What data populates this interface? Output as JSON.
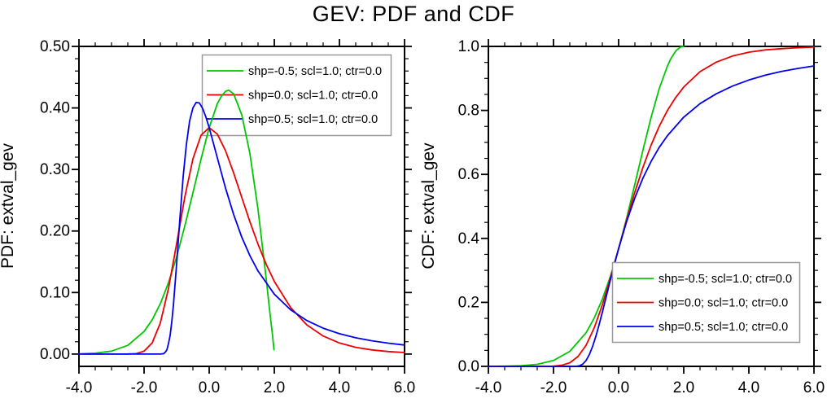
{
  "figure": {
    "title": "GEV: PDF and CDF"
  },
  "chart_data": [
    {
      "type": "line",
      "title": "",
      "xlabel": "",
      "ylabel": "PDF: extval_gev",
      "xlim": [
        -4,
        6
      ],
      "ylim": [
        -0.02,
        0.5
      ],
      "grid": false,
      "legend_position": "upper-right-inside",
      "legend_opaque": false,
      "xtick_values": [
        -4,
        -2,
        0,
        2,
        4,
        6
      ],
      "xtick_labels": [
        "-4.0",
        "-2.0",
        "0.0",
        "2.0",
        "4.0",
        "6.0"
      ],
      "xminor_step": 0.5,
      "ytick_values": [
        0,
        0.1,
        0.2,
        0.3,
        0.4,
        0.5
      ],
      "ytick_labels": [
        "0.00",
        "0.10",
        "0.20",
        "0.30",
        "0.40",
        "0.50"
      ],
      "yminor_step": 0.02,
      "series": [
        {
          "name": "shp=-0.5; scl=1.0; ctr=0.0",
          "color": "#00C800",
          "points": [
            [
              -4,
              0.0004
            ],
            [
              -3.5,
              0.0014
            ],
            [
              -3,
              0.0048
            ],
            [
              -2.5,
              0.0142
            ],
            [
              -2,
              0.0366
            ],
            [
              -1.75,
              0.0557
            ],
            [
              -1.5,
              0.082
            ],
            [
              -1.25,
              0.116
            ],
            [
              -1,
              0.158
            ],
            [
              -0.75,
              0.208
            ],
            [
              -0.5,
              0.262
            ],
            [
              -0.25,
              0.317
            ],
            [
              0,
              0.368
            ],
            [
              0.25,
              0.407
            ],
            [
              0.375,
              0.419
            ],
            [
              0.5,
              0.427
            ],
            [
              0.6,
              0.429
            ],
            [
              0.75,
              0.423
            ],
            [
              1,
              0.389
            ],
            [
              1.25,
              0.326
            ],
            [
              1.5,
              0.235
            ],
            [
              1.75,
              0.123
            ],
            [
              1.85,
              0.074
            ],
            [
              1.95,
              0.028
            ],
            [
              1.99,
              0.007
            ]
          ]
        },
        {
          "name": "shp=0.0; scl=1.0; ctr=0.0",
          "color": "#EE0000",
          "points": [
            [
              -4,
              0
            ],
            [
              -3,
              0
            ],
            [
              -2.5,
              0.0001
            ],
            [
              -2.25,
              0.0007
            ],
            [
              -2,
              0.0046
            ],
            [
              -1.75,
              0.0183
            ],
            [
              -1.5,
              0.0507
            ],
            [
              -1.25,
              0.1065
            ],
            [
              -1,
              0.1794
            ],
            [
              -0.75,
              0.2548
            ],
            [
              -0.5,
              0.3171
            ],
            [
              -0.25,
              0.3556
            ],
            [
              0,
              0.3679
            ],
            [
              0.25,
              0.3575
            ],
            [
              0.5,
              0.3307
            ],
            [
              0.75,
              0.2945
            ],
            [
              1,
              0.2547
            ],
            [
              1.25,
              0.2151
            ],
            [
              1.5,
              0.1785
            ],
            [
              1.75,
              0.1461
            ],
            [
              2,
              0.1182
            ],
            [
              2.5,
              0.0756
            ],
            [
              3,
              0.0474
            ],
            [
              3.5,
              0.0293
            ],
            [
              4,
              0.018
            ],
            [
              4.5,
              0.011
            ],
            [
              5,
              0.0067
            ],
            [
              5.5,
              0.0041
            ],
            [
              6,
              0.0025
            ]
          ]
        },
        {
          "name": "shp=0.5; scl=1.0; ctr=0.0",
          "color": "#0000EE",
          "points": [
            [
              -4,
              0
            ],
            [
              -2,
              0
            ],
            [
              -1.5,
              0
            ],
            [
              -1.4,
              0.0006
            ],
            [
              -1.35,
              0.003
            ],
            [
              -1.3,
              0.0067
            ],
            [
              -1.25,
              0.017
            ],
            [
              -1.2,
              0.0302
            ],
            [
              -1.15,
              0.052
            ],
            [
              -1.1,
              0.0787
            ],
            [
              -1,
              0.1465
            ],
            [
              -0.9,
              0.22
            ],
            [
              -0.8,
              0.288
            ],
            [
              -0.7,
              0.341
            ],
            [
              -0.6,
              0.379
            ],
            [
              -0.5,
              0.4
            ],
            [
              -0.4,
              0.409
            ],
            [
              -0.3,
              0.408
            ],
            [
              -0.2,
              0.399
            ],
            [
              -0.1,
              0.385
            ],
            [
              0,
              0.368
            ],
            [
              0.25,
              0.319
            ],
            [
              0.5,
              0.27
            ],
            [
              0.75,
              0.227
            ],
            [
              1,
              0.19
            ],
            [
              1.25,
              0.16
            ],
            [
              1.5,
              0.135
            ],
            [
              2,
              0.0974
            ],
            [
              2.5,
              0.072
            ],
            [
              3,
              0.0545
            ],
            [
              3.5,
              0.0421
            ],
            [
              4,
              0.0331
            ],
            [
              4.5,
              0.0265
            ],
            [
              5,
              0.0215
            ],
            [
              5.5,
              0.0177
            ],
            [
              6,
              0.0147
            ]
          ]
        }
      ]
    },
    {
      "type": "line",
      "title": "",
      "xlabel": "",
      "ylabel": "CDF: extval_gev",
      "xlim": [
        -4,
        6
      ],
      "ylim": [
        0,
        1
      ],
      "grid": false,
      "legend_position": "lower-right-inside",
      "legend_opaque": true,
      "xtick_values": [
        -4,
        -2,
        0,
        2,
        4,
        6
      ],
      "xtick_labels": [
        "-4.0",
        "-2.0",
        "0.0",
        "2.0",
        "4.0",
        "6.0"
      ],
      "xminor_step": 0.5,
      "ytick_values": [
        0,
        0.2,
        0.4,
        0.6,
        0.8,
        1
      ],
      "ytick_labels": [
        "0.0",
        "0.2",
        "0.4",
        "0.6",
        "0.8",
        "1.0"
      ],
      "yminor_step": 0.05,
      "series": [
        {
          "name": "shp=-0.5; scl=1.0; ctr=0.0",
          "color": "#00C800",
          "points": [
            [
              -4,
              0.0001
            ],
            [
              -3.5,
              0.0005
            ],
            [
              -3,
              0.0019
            ],
            [
              -2.5,
              0.0063
            ],
            [
              -2,
              0.0183
            ],
            [
              -1.5,
              0.0468
            ],
            [
              -1,
              0.105
            ],
            [
              -0.75,
              0.151
            ],
            [
              -0.5,
              0.21
            ],
            [
              -0.25,
              0.282
            ],
            [
              0,
              0.368
            ],
            [
              0.25,
              0.465
            ],
            [
              0.5,
              0.57
            ],
            [
              0.75,
              0.677
            ],
            [
              1,
              0.779
            ],
            [
              1.25,
              0.869
            ],
            [
              1.5,
              0.939
            ],
            [
              1.6,
              0.961
            ],
            [
              1.75,
              0.985
            ],
            [
              1.8,
              0.99
            ],
            [
              1.9,
              0.998
            ],
            [
              2,
              1
            ]
          ]
        },
        {
          "name": "shp=0.0; scl=1.0; ctr=0.0",
          "color": "#EE0000",
          "points": [
            [
              -4,
              0
            ],
            [
              -3,
              0
            ],
            [
              -2.5,
              0
            ],
            [
              -2,
              0.0006
            ],
            [
              -1.75,
              0.0032
            ],
            [
              -1.5,
              0.0113
            ],
            [
              -1.25,
              0.0305
            ],
            [
              -1,
              0.066
            ],
            [
              -0.75,
              0.12
            ],
            [
              -0.5,
              0.192
            ],
            [
              -0.25,
              0.277
            ],
            [
              0,
              0.368
            ],
            [
              0.25,
              0.459
            ],
            [
              0.5,
              0.545
            ],
            [
              0.75,
              0.623
            ],
            [
              1,
              0.692
            ],
            [
              1.25,
              0.751
            ],
            [
              1.5,
              0.8
            ],
            [
              1.75,
              0.84
            ],
            [
              2,
              0.873
            ],
            [
              2.5,
              0.921
            ],
            [
              3,
              0.951
            ],
            [
              3.5,
              0.97
            ],
            [
              4,
              0.982
            ],
            [
              4.5,
              0.989
            ],
            [
              5,
              0.993
            ],
            [
              5.5,
              0.996
            ],
            [
              6,
              0.998
            ]
          ]
        },
        {
          "name": "shp=0.5; scl=1.0; ctr=0.0",
          "color": "#0000EE",
          "points": [
            [
              -4,
              0
            ],
            [
              -2,
              0
            ],
            [
              -1.4,
              0
            ],
            [
              -1.3,
              0.0003
            ],
            [
              -1.2,
              0.0019
            ],
            [
              -1.1,
              0.0072
            ],
            [
              -1,
              0.0183
            ],
            [
              -0.9,
              0.0366
            ],
            [
              -0.8,
              0.0622
            ],
            [
              -0.7,
              0.0937
            ],
            [
              -0.6,
              0.13
            ],
            [
              -0.5,
              0.169
            ],
            [
              -0.4,
              0.21
            ],
            [
              -0.3,
              0.251
            ],
            [
              -0.2,
              0.291
            ],
            [
              -0.1,
              0.33
            ],
            [
              0,
              0.368
            ],
            [
              0.25,
              0.454
            ],
            [
              0.5,
              0.527
            ],
            [
              0.75,
              0.589
            ],
            [
              1,
              0.641
            ],
            [
              1.25,
              0.685
            ],
            [
              1.5,
              0.721
            ],
            [
              2,
              0.779
            ],
            [
              2.5,
              0.821
            ],
            [
              3,
              0.852
            ],
            [
              3.5,
              0.876
            ],
            [
              4,
              0.895
            ],
            [
              4.5,
              0.91
            ],
            [
              5,
              0.922
            ],
            [
              5.5,
              0.931
            ],
            [
              6,
              0.939
            ]
          ]
        }
      ]
    }
  ]
}
